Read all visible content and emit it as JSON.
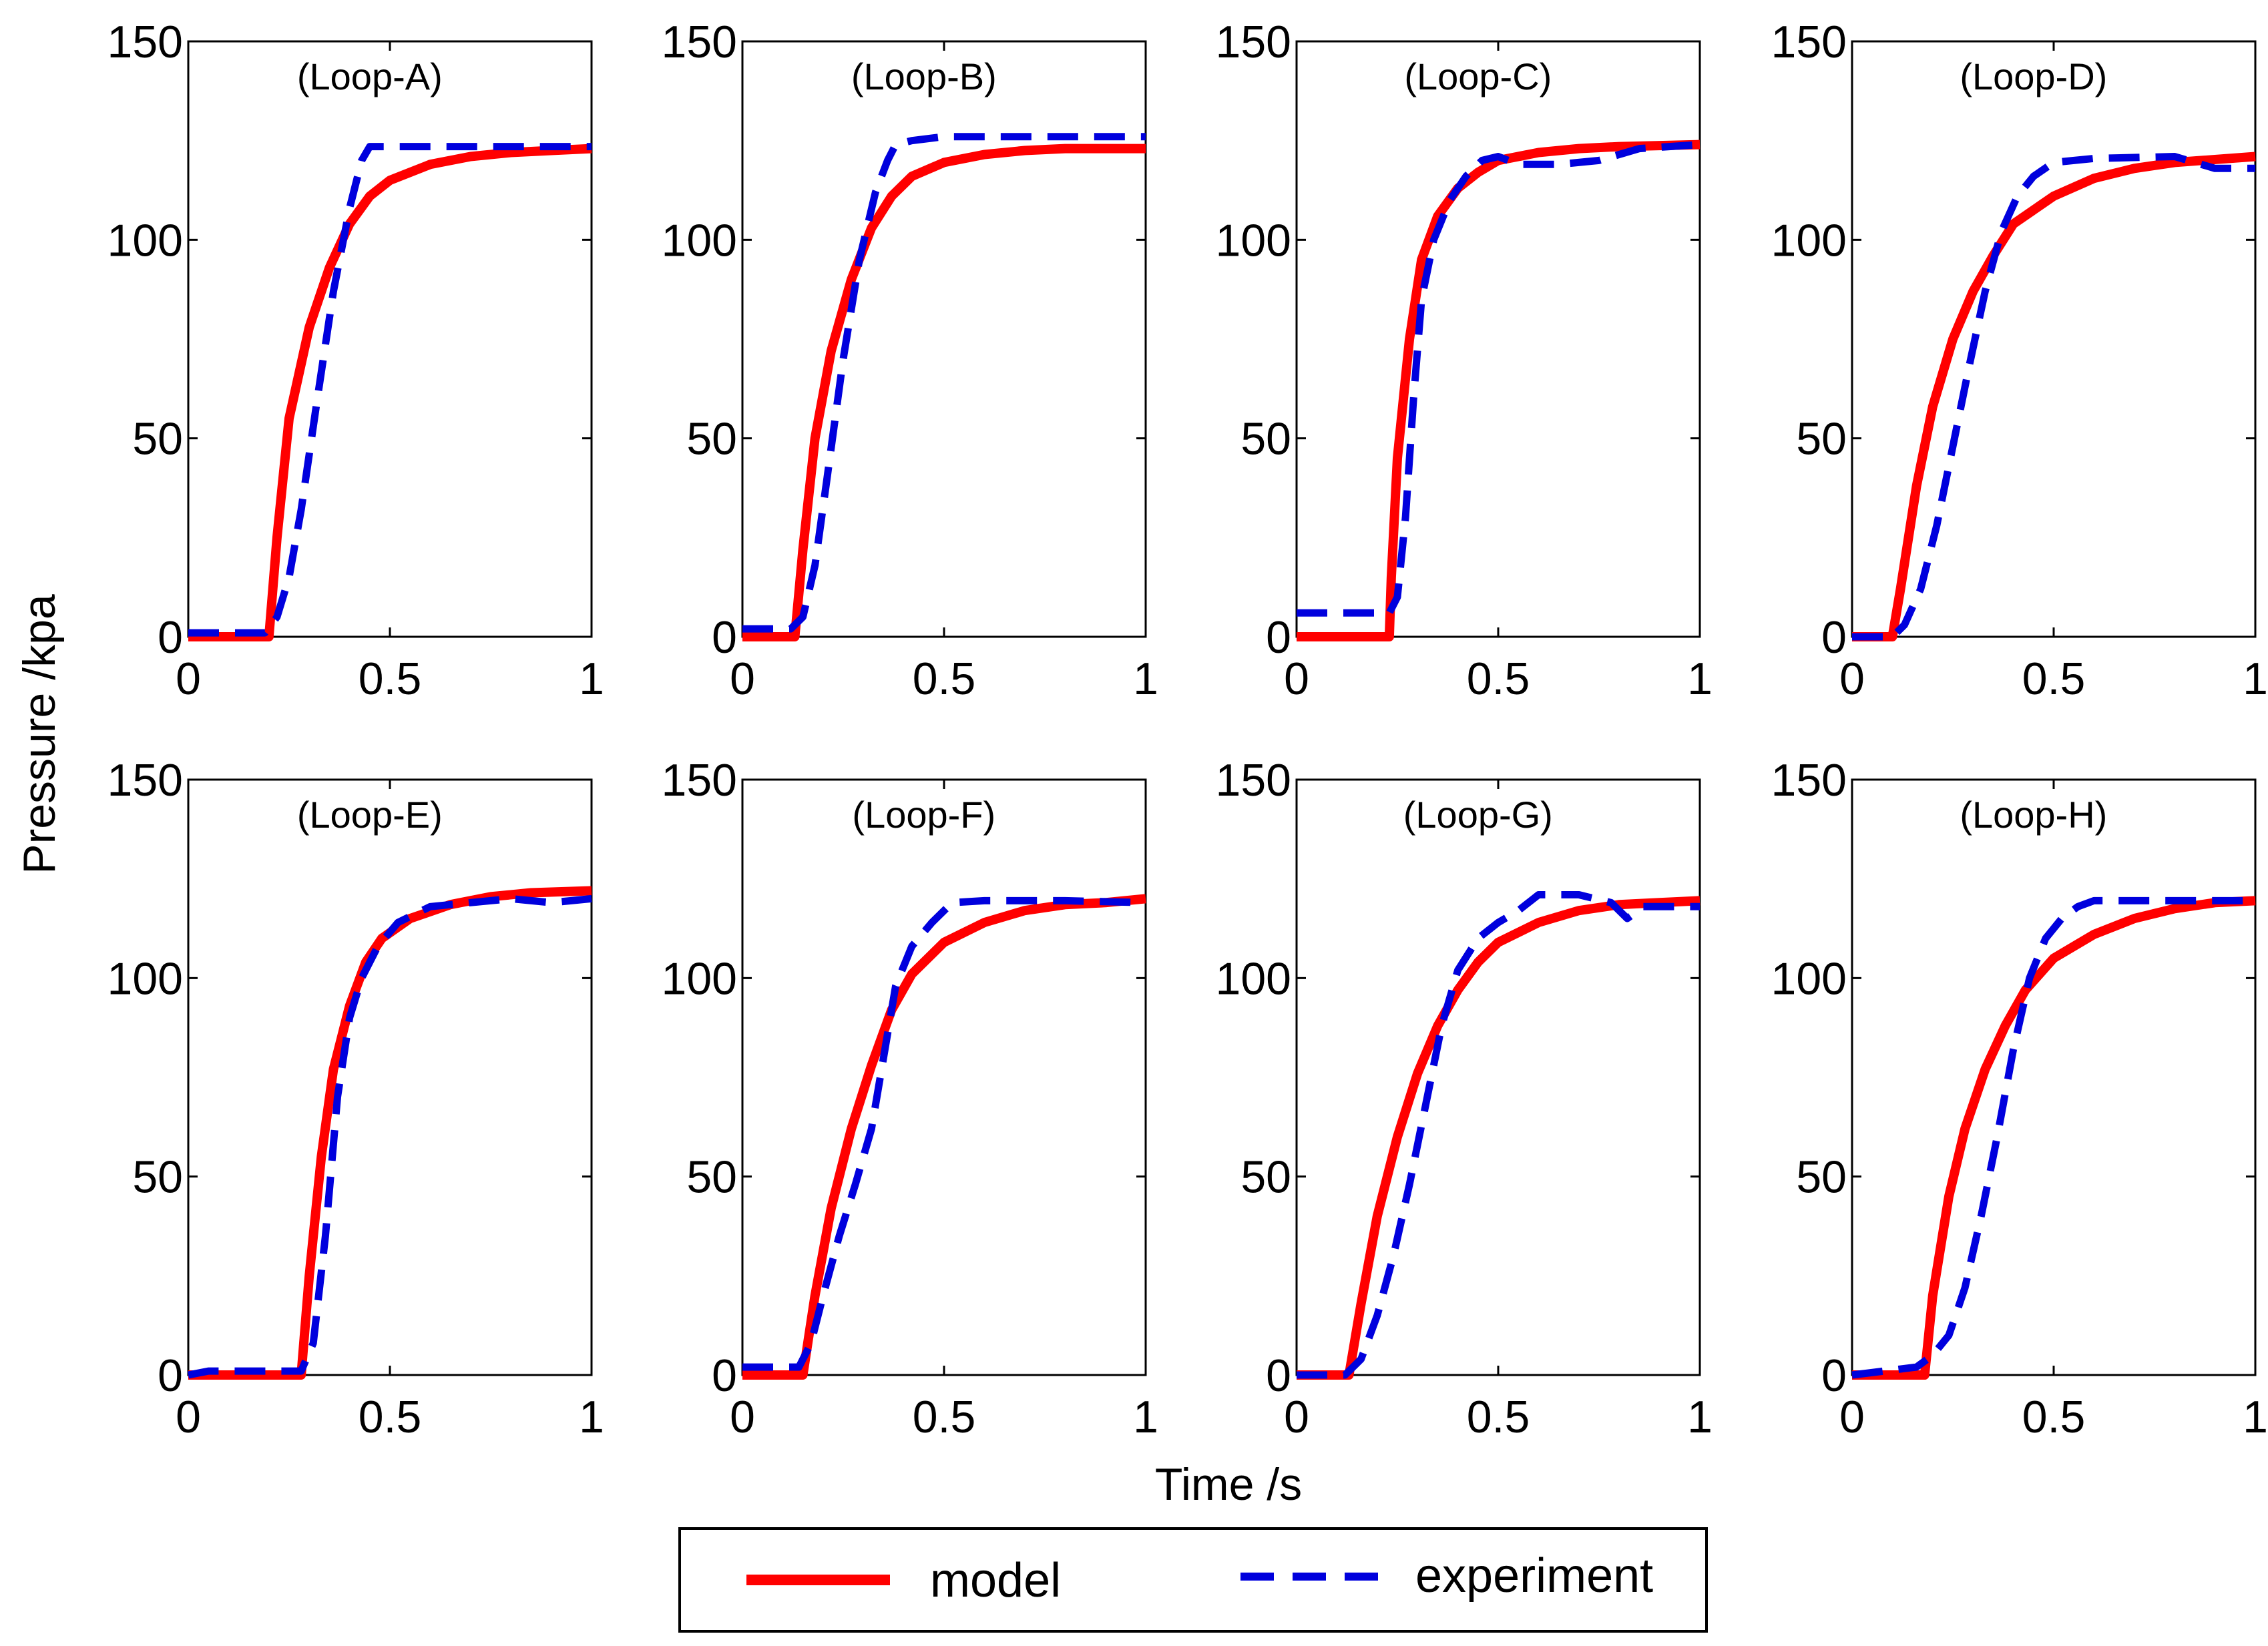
{
  "chart_data": {
    "type": "line",
    "xlabel": "Time /s",
    "ylabel": "Pressure /kpa",
    "xlim": [
      0,
      1
    ],
    "ylim": [
      0,
      150
    ],
    "xticks": [
      0,
      0.5,
      1
    ],
    "xtick_labels": [
      "0",
      "0.5",
      "1"
    ],
    "yticks": [
      0,
      50,
      100,
      150
    ],
    "ytick_labels": [
      "0",
      "50",
      "100",
      "150"
    ],
    "grid": false,
    "legend": {
      "position": "bottom-center",
      "entries": [
        {
          "label": "model",
          "color": "#ff0000",
          "style": "solid"
        },
        {
          "label": "experiment",
          "color": "#0000dd",
          "style": "dashed"
        }
      ]
    },
    "panels": [
      {
        "title": "(Loop-A)",
        "series": [
          {
            "name": "model",
            "x": [
              0,
              0.2,
              0.22,
              0.25,
              0.3,
              0.35,
              0.4,
              0.45,
              0.5,
              0.6,
              0.7,
              0.8,
              0.9,
              1.0
            ],
            "y": [
              0,
              0,
              25,
              55,
              78,
              93,
              104,
              111,
              115,
              119,
              121,
              122,
              122.5,
              123
            ]
          },
          {
            "name": "experiment",
            "x": [
              0,
              0.19,
              0.22,
              0.25,
              0.28,
              0.32,
              0.36,
              0.4,
              0.43,
              0.45,
              0.5,
              0.6,
              0.8,
              1.0
            ],
            "y": [
              1,
              1,
              5,
              15,
              32,
              60,
              87,
              108,
              120,
              123.5,
              123.5,
              123.5,
              123.5,
              123.5
            ]
          }
        ]
      },
      {
        "title": "(Loop-B)",
        "series": [
          {
            "name": "model",
            "x": [
              0,
              0.13,
              0.15,
              0.18,
              0.22,
              0.27,
              0.32,
              0.37,
              0.42,
              0.5,
              0.6,
              0.7,
              0.8,
              1.0
            ],
            "y": [
              0,
              0,
              22,
              50,
              72,
              90,
              103,
              111,
              116,
              119.5,
              121.5,
              122.5,
              123,
              123
            ]
          },
          {
            "name": "experiment",
            "x": [
              0,
              0.12,
              0.15,
              0.18,
              0.21,
              0.25,
              0.29,
              0.33,
              0.36,
              0.38,
              0.42,
              0.5,
              0.6,
              0.7,
              1.0
            ],
            "y": [
              2,
              2,
              5,
              18,
              40,
              70,
              95,
              112,
              120,
              124,
              125,
              126,
              126,
              126,
              126
            ]
          }
        ]
      },
      {
        "title": "(Loop-C)",
        "series": [
          {
            "name": "model",
            "x": [
              0,
              0.23,
              0.235,
              0.25,
              0.28,
              0.31,
              0.35,
              0.4,
              0.45,
              0.5,
              0.6,
              0.7,
              0.8,
              1.0
            ],
            "y": [
              0,
              0,
              15,
              45,
              75,
              95,
              106,
              113,
              117,
              120,
              122,
              123,
              123.5,
              124
            ]
          },
          {
            "name": "experiment",
            "x": [
              0,
              0.23,
              0.25,
              0.27,
              0.29,
              0.31,
              0.34,
              0.38,
              0.42,
              0.46,
              0.5,
              0.55,
              0.65,
              0.75,
              0.85,
              1.0
            ],
            "y": [
              6,
              6,
              10,
              30,
              60,
              85,
              100,
              110,
              116,
              120,
              121,
              119,
              119,
              120,
              123,
              124
            ]
          }
        ]
      },
      {
        "title": "(Loop-D)",
        "series": [
          {
            "name": "model",
            "x": [
              0,
              0.1,
              0.12,
              0.16,
              0.2,
              0.25,
              0.3,
              0.35,
              0.4,
              0.5,
              0.6,
              0.7,
              0.8,
              1.0
            ],
            "y": [
              0,
              0,
              12,
              38,
              58,
              75,
              87,
              96,
              104,
              111,
              115.5,
              118,
              119.5,
              121
            ]
          },
          {
            "name": "experiment",
            "x": [
              0,
              0.1,
              0.13,
              0.17,
              0.21,
              0.25,
              0.29,
              0.33,
              0.37,
              0.41,
              0.45,
              0.5,
              0.6,
              0.8,
              0.9,
              1.0
            ],
            "y": [
              0,
              0,
              3,
              12,
              28,
              48,
              68,
              87,
              102,
              111,
              116,
              119.5,
              120.5,
              121,
              118,
              118
            ]
          }
        ]
      },
      {
        "title": "(Loop-E)",
        "series": [
          {
            "name": "model",
            "x": [
              0,
              0.28,
              0.3,
              0.33,
              0.36,
              0.4,
              0.44,
              0.48,
              0.55,
              0.65,
              0.75,
              0.85,
              1.0
            ],
            "y": [
              0,
              0,
              25,
              55,
              77,
              93,
              104,
              110,
              115,
              118.5,
              120.5,
              121.5,
              122
            ]
          },
          {
            "name": "experiment",
            "x": [
              0,
              0.05,
              0.28,
              0.31,
              0.34,
              0.37,
              0.4,
              0.43,
              0.47,
              0.52,
              0.6,
              0.7,
              0.8,
              0.9,
              1.0
            ],
            "y": [
              0,
              1,
              1,
              8,
              35,
              70,
              90,
              100,
              108,
              114,
              118,
              119,
              120,
              119,
              120
            ]
          }
        ]
      },
      {
        "title": "(Loop-F)",
        "series": [
          {
            "name": "model",
            "x": [
              0,
              0.15,
              0.18,
              0.22,
              0.27,
              0.32,
              0.37,
              0.42,
              0.5,
              0.6,
              0.7,
              0.8,
              0.9,
              1.0
            ],
            "y": [
              0,
              0,
              20,
              42,
              62,
              78,
              92,
              101,
              109,
              114,
              117,
              118.5,
              119,
              120
            ]
          },
          {
            "name": "experiment",
            "x": [
              0,
              0.14,
              0.17,
              0.2,
              0.24,
              0.28,
              0.32,
              0.35,
              0.38,
              0.42,
              0.47,
              0.52,
              0.6,
              0.8,
              1.0
            ],
            "y": [
              2,
              2,
              8,
              20,
              35,
              48,
              62,
              80,
              98,
              108,
              114,
              119,
              119.5,
              119.5,
              119
            ]
          }
        ]
      },
      {
        "title": "(Loop-G)",
        "series": [
          {
            "name": "model",
            "x": [
              0,
              0.13,
              0.16,
              0.2,
              0.25,
              0.3,
              0.35,
              0.4,
              0.45,
              0.5,
              0.6,
              0.7,
              0.8,
              0.9,
              1.0
            ],
            "y": [
              0,
              0,
              18,
              40,
              60,
              76,
              88,
              97,
              104,
              109,
              114,
              117,
              118.5,
              119,
              119.5
            ]
          },
          {
            "name": "experiment",
            "x": [
              0,
              0.12,
              0.16,
              0.2,
              0.24,
              0.28,
              0.32,
              0.36,
              0.4,
              0.45,
              0.5,
              0.55,
              0.6,
              0.7,
              0.78,
              0.82,
              0.86,
              1.0
            ],
            "y": [
              0,
              0,
              4,
              15,
              30,
              48,
              68,
              88,
              102,
              110,
              114,
              117,
              121,
              121,
              119,
              115,
              118,
              118
            ]
          }
        ]
      },
      {
        "title": "(Loop-H)",
        "series": [
          {
            "name": "model",
            "x": [
              0,
              0.18,
              0.2,
              0.24,
              0.28,
              0.33,
              0.38,
              0.43,
              0.5,
              0.6,
              0.7,
              0.8,
              0.9,
              1.0
            ],
            "y": [
              0,
              0,
              20,
              45,
              62,
              77,
              88,
              97,
              105,
              111,
              115,
              117.5,
              119,
              119.5
            ]
          },
          {
            "name": "experiment",
            "x": [
              0,
              0.16,
              0.2,
              0.24,
              0.28,
              0.32,
              0.36,
              0.4,
              0.44,
              0.48,
              0.52,
              0.56,
              0.6,
              0.7,
              0.8,
              1.0
            ],
            "y": [
              0,
              2,
              5,
              10,
              22,
              40,
              60,
              82,
              100,
              110,
              115,
              118,
              119.5,
              119.5,
              119.5,
              119.5
            ]
          }
        ]
      }
    ]
  }
}
